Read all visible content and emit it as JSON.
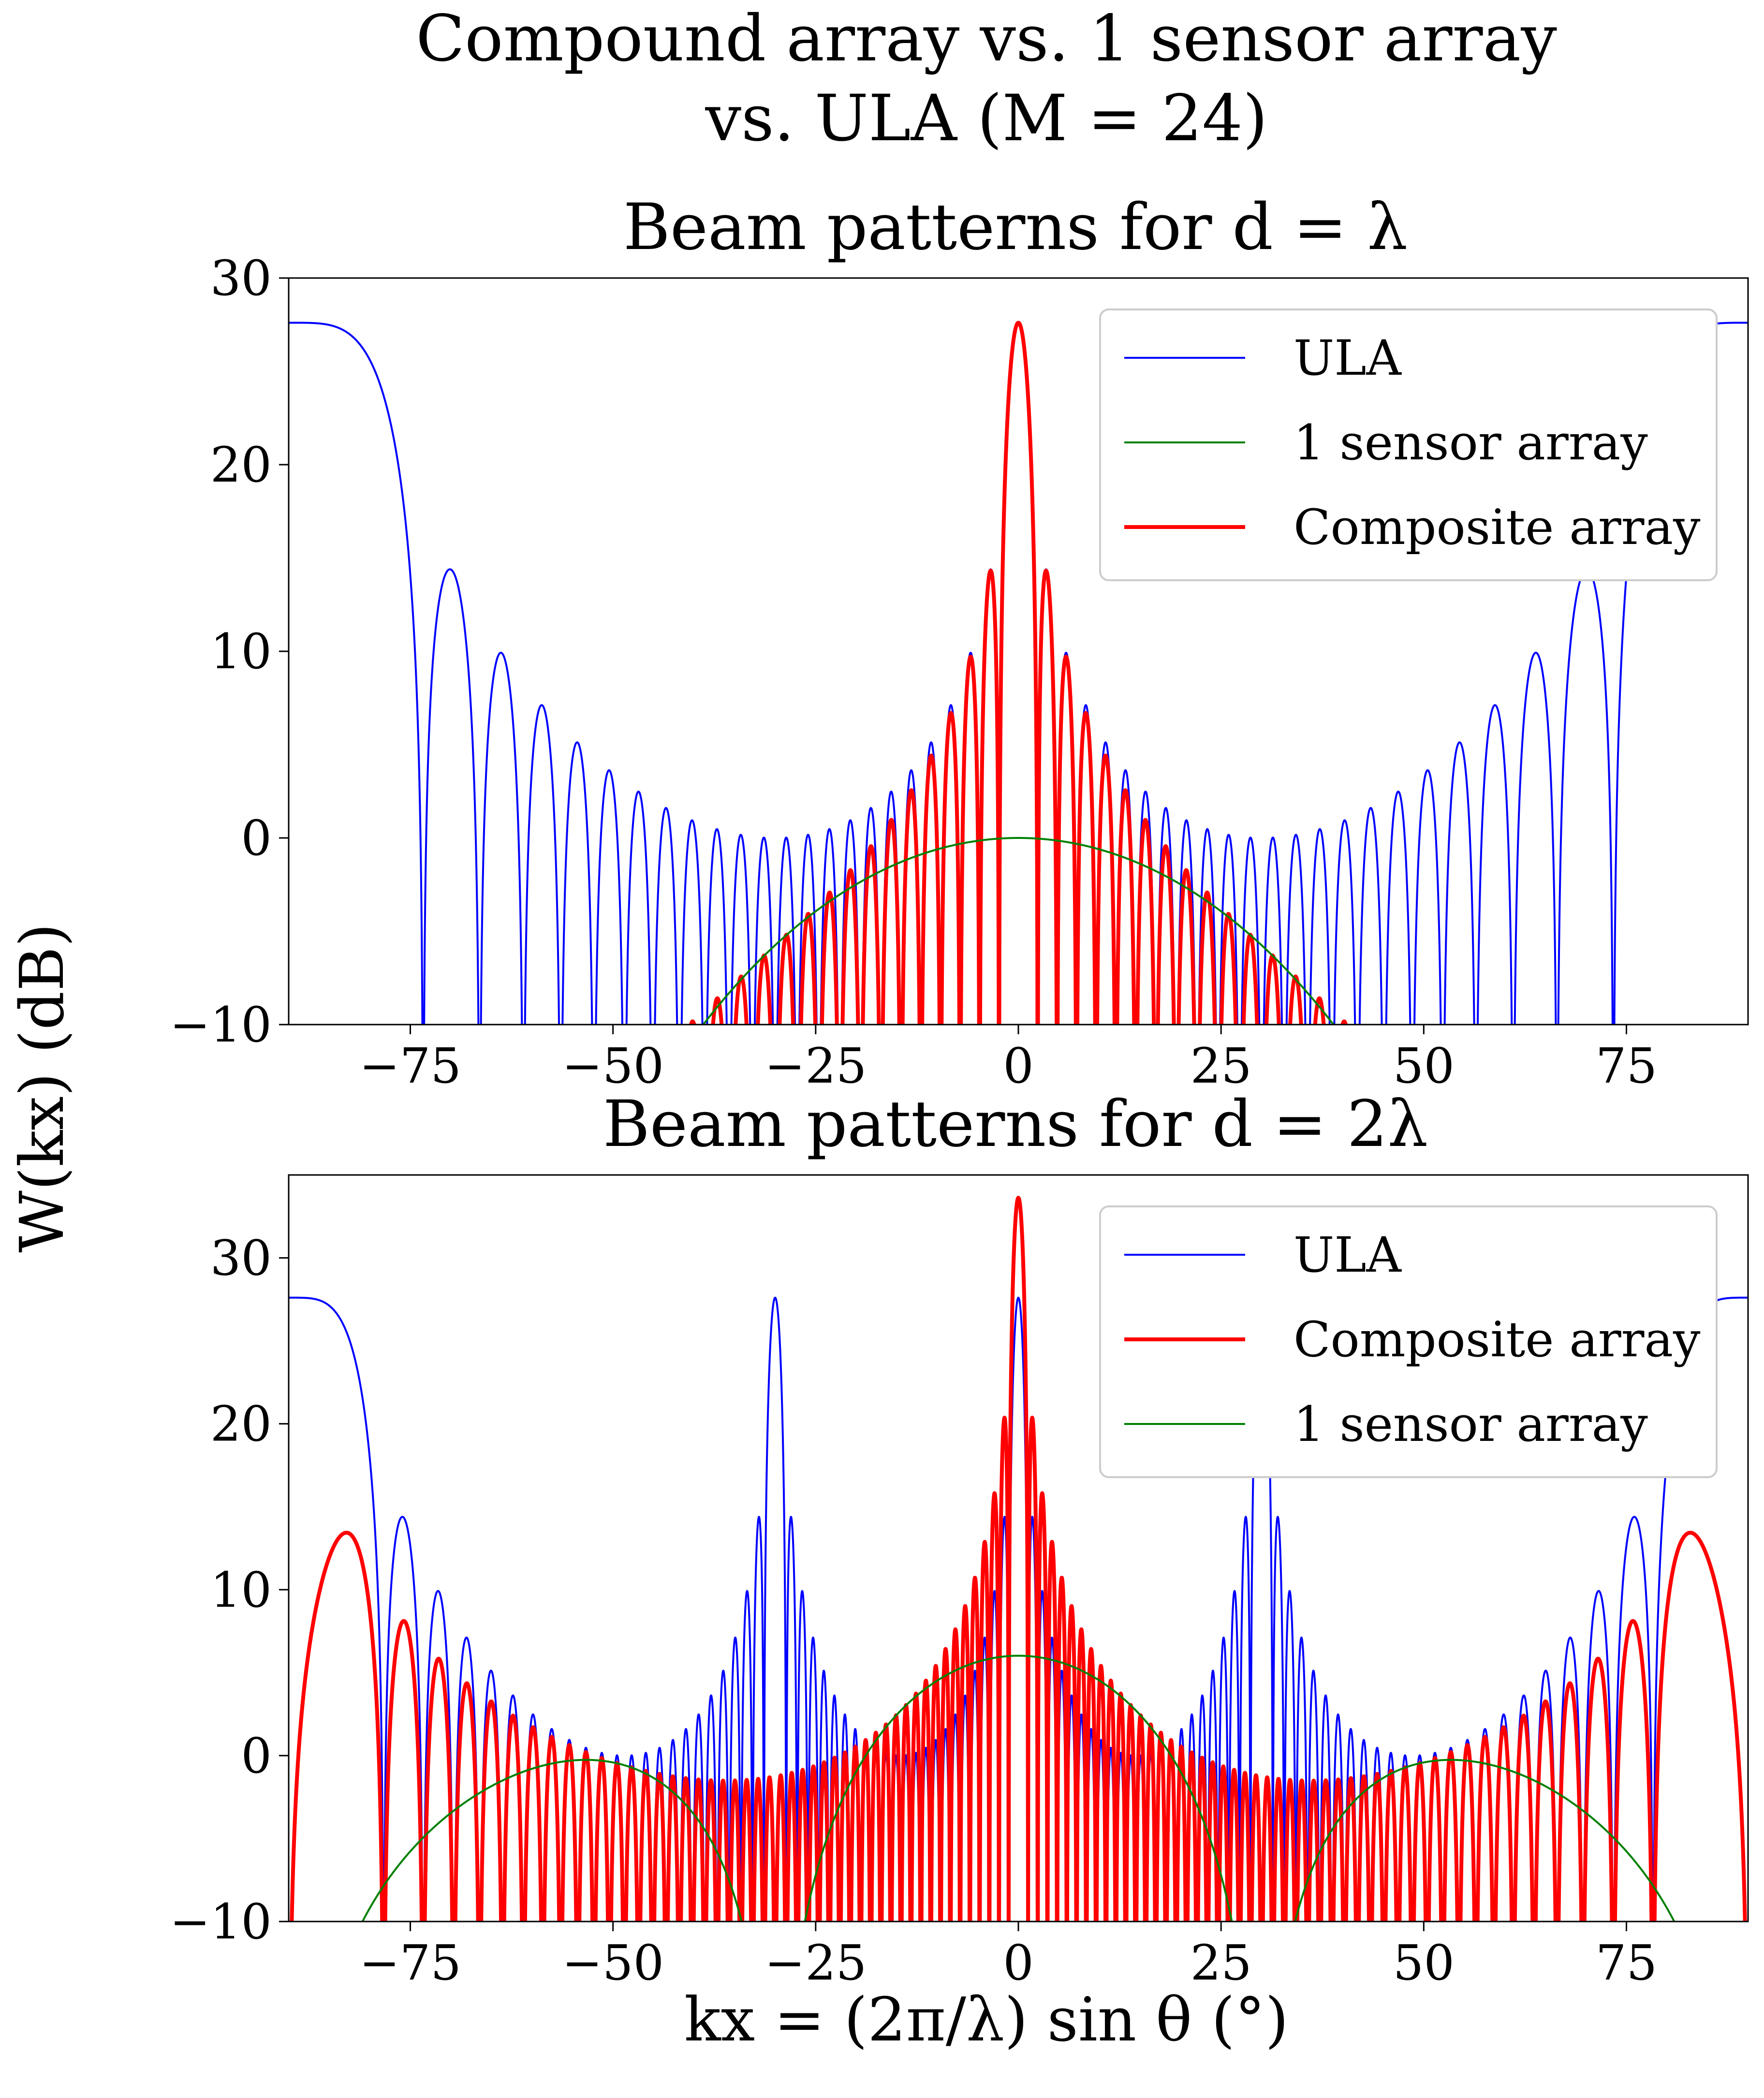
{
  "figure": {
    "title_line1": "Compound array vs. 1 sensor array",
    "title_line2": "vs. ULA (M = 24)",
    "ylabel": "W(kx) (dB)",
    "xlabel": "kx = (2π/λ) sin θ (°)"
  },
  "colors": {
    "ula": "#0000ff",
    "sensor": "#008000",
    "composite": "#ff0000",
    "legend_border": "#cccccc"
  },
  "chart_data": [
    {
      "type": "line",
      "title": "Beam patterns for d = λ",
      "xlim": [
        -90,
        90
      ],
      "ylim": [
        -10,
        30
      ],
      "xticks": [
        -75,
        -50,
        -25,
        0,
        25,
        50,
        75
      ],
      "yticks": [
        -10,
        0,
        10,
        20,
        30
      ],
      "grid": false,
      "legend_placement": "upper-right",
      "legend_order": [
        "ULA",
        "1 sensor array",
        "Composite array"
      ],
      "series": [
        {
          "name": "ULA",
          "color": "#0000ff",
          "description": "|sum of 24 elements, spacing d=λ| in dB; main lobes at ±90",
          "peak": 27.6,
          "first_sidelobe": 14.3,
          "x_range": [
            -90,
            90
          ]
        },
        {
          "name": "1 sensor array",
          "color": "#008000",
          "peak": 0,
          "x_range": [
            -90,
            90
          ]
        },
        {
          "name": "Composite array",
          "color": "#ff0000",
          "peak": 27.6,
          "first_sidelobe": 14.3,
          "x_range": [
            -90,
            90
          ]
        }
      ]
    },
    {
      "type": "line",
      "title": "Beam patterns for d = 2λ",
      "xlim": [
        -90,
        90
      ],
      "ylim": [
        -10,
        35
      ],
      "xticks": [
        -75,
        -50,
        -25,
        0,
        25,
        50,
        75
      ],
      "yticks": [
        -10,
        0,
        10,
        20,
        30
      ],
      "grid": false,
      "legend_placement": "upper-right",
      "legend_order": [
        "ULA",
        "Composite array",
        "1 sensor array"
      ],
      "series": [
        {
          "name": "ULA",
          "color": "#0000ff",
          "peak": 27.6,
          "grating_lobes_at": [
            -90,
            -30,
            0,
            30,
            90
          ],
          "x_range": [
            -90,
            90
          ]
        },
        {
          "name": "Composite array",
          "color": "#ff0000",
          "peak": 33.6,
          "x_range": [
            -90,
            90
          ]
        },
        {
          "name": "1 sensor array",
          "color": "#008000",
          "peak": 6.0,
          "x_range": [
            -90,
            90
          ]
        }
      ]
    }
  ]
}
